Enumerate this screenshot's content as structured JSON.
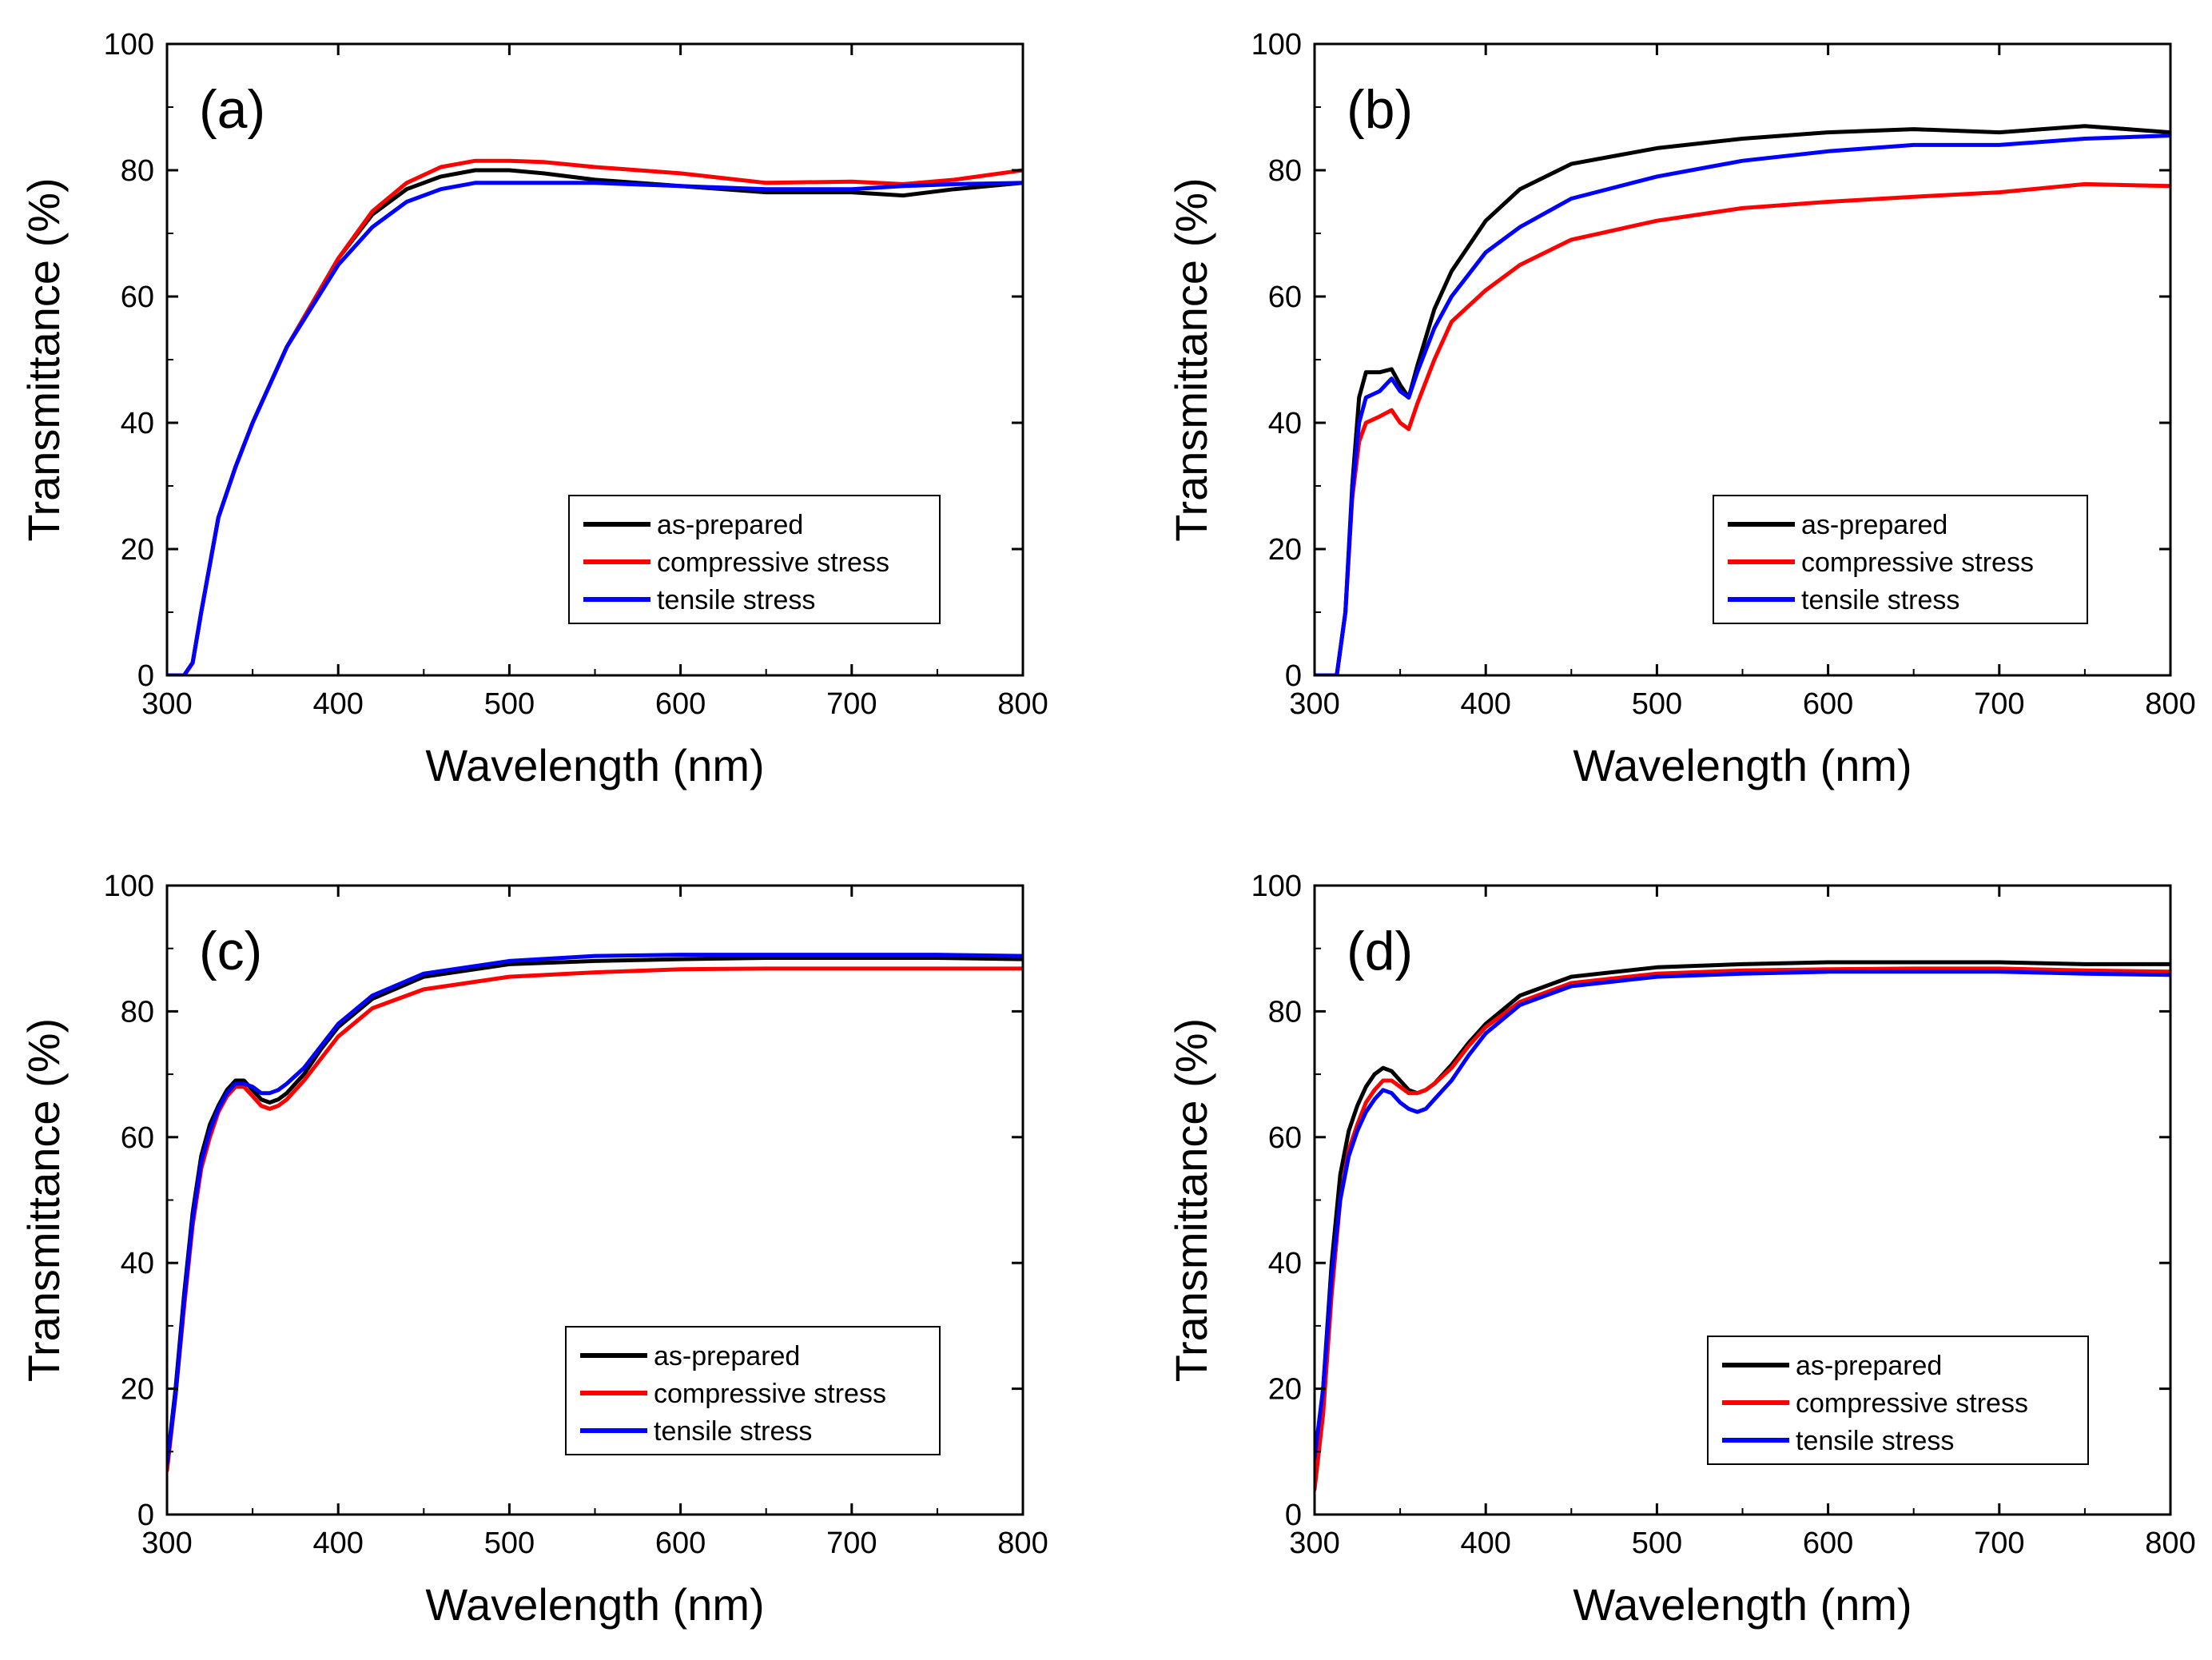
{
  "chart_data": [
    {
      "type": "line",
      "panel_label": "(a)",
      "xlabel": "Wavelength (nm)",
      "ylabel": "Transmittance (%)",
      "xlim": [
        300,
        800
      ],
      "ylim": [
        0,
        100
      ],
      "x_ticks": [
        300,
        400,
        500,
        600,
        700,
        800
      ],
      "y_ticks": [
        0,
        20,
        40,
        60,
        80,
        100
      ],
      "legend_position": "bottom-right",
      "series": [
        {
          "name": "as-prepared",
          "color": "#000000",
          "x": [
            300,
            310,
            315,
            320,
            330,
            340,
            350,
            370,
            400,
            420,
            440,
            460,
            480,
            500,
            520,
            550,
            600,
            650,
            700,
            730,
            760,
            800
          ],
          "y": [
            0,
            0,
            2,
            10,
            25,
            33,
            40,
            52,
            66,
            73,
            77,
            79,
            80,
            80,
            79.5,
            78.5,
            77.5,
            76.5,
            76.5,
            76,
            77,
            78
          ]
        },
        {
          "name": "compressive stress",
          "color": "#ff0000",
          "x": [
            300,
            310,
            315,
            320,
            330,
            340,
            350,
            370,
            400,
            420,
            440,
            460,
            480,
            500,
            520,
            550,
            600,
            650,
            700,
            730,
            760,
            800
          ],
          "y": [
            0,
            0,
            2,
            10,
            25,
            33,
            40,
            52,
            66,
            73.5,
            78,
            80.5,
            81.5,
            81.5,
            81.3,
            80.5,
            79.5,
            78,
            78.2,
            77.8,
            78.5,
            80
          ]
        },
        {
          "name": "tensile stress",
          "color": "#0000ff",
          "x": [
            300,
            310,
            315,
            320,
            330,
            340,
            350,
            370,
            400,
            420,
            440,
            460,
            480,
            500,
            520,
            550,
            600,
            650,
            700,
            730,
            760,
            800
          ],
          "y": [
            0,
            0,
            2,
            10,
            25,
            33,
            40,
            52,
            65,
            71,
            75,
            77,
            78,
            78,
            78,
            78,
            77.5,
            77,
            77,
            77.5,
            77.8,
            78
          ]
        }
      ],
      "legend_labels": [
        "as-prepared",
        "compressive stress",
        "tensile stress"
      ]
    },
    {
      "type": "line",
      "panel_label": "(b)",
      "xlabel": "Wavelength (nm)",
      "ylabel": "Transmittance (%)",
      "xlim": [
        300,
        800
      ],
      "ylim": [
        0,
        100
      ],
      "x_ticks": [
        300,
        400,
        500,
        600,
        700,
        800
      ],
      "y_ticks": [
        0,
        20,
        40,
        60,
        80,
        100
      ],
      "legend_position": "bottom-right",
      "series": [
        {
          "name": "as-prepared",
          "color": "#000000",
          "x": [
            300,
            313,
            318,
            322,
            326,
            330,
            338,
            345,
            350,
            355,
            360,
            370,
            380,
            400,
            420,
            450,
            500,
            550,
            600,
            650,
            700,
            750,
            800
          ],
          "y": [
            0,
            0,
            10,
            30,
            44,
            48,
            48,
            48.5,
            46,
            44,
            49,
            58,
            64,
            72,
            77,
            81,
            83.5,
            85,
            86,
            86.5,
            86,
            87,
            86
          ]
        },
        {
          "name": "compressive stress",
          "color": "#ff0000",
          "x": [
            300,
            313,
            318,
            322,
            326,
            330,
            338,
            345,
            350,
            355,
            360,
            370,
            380,
            400,
            420,
            450,
            500,
            550,
            600,
            650,
            700,
            750,
            800
          ],
          "y": [
            0,
            0,
            10,
            28,
            37,
            40,
            41,
            42,
            40,
            39,
            43,
            50,
            56,
            61,
            65,
            69,
            72,
            74,
            75,
            75.8,
            76.5,
            77.8,
            77.5
          ]
        },
        {
          "name": "tensile stress",
          "color": "#0000ff",
          "x": [
            300,
            313,
            318,
            322,
            326,
            330,
            338,
            345,
            350,
            355,
            360,
            370,
            380,
            400,
            420,
            450,
            500,
            550,
            600,
            650,
            700,
            750,
            800
          ],
          "y": [
            0,
            0,
            10,
            29,
            40,
            44,
            45,
            47,
            45,
            44,
            48,
            55,
            60,
            67,
            71,
            75.5,
            79,
            81.5,
            83,
            84,
            84,
            85,
            85.5
          ]
        }
      ],
      "legend_labels": [
        "as-prepared",
        "compressive stress",
        "tensile stress"
      ]
    },
    {
      "type": "line",
      "panel_label": "(c)",
      "xlabel": "Wavelength (nm)",
      "ylabel": "Transmittance (%)",
      "xlim": [
        300,
        800
      ],
      "ylim": [
        0,
        100
      ],
      "x_ticks": [
        300,
        400,
        500,
        600,
        700,
        800
      ],
      "y_ticks": [
        0,
        20,
        40,
        60,
        80,
        100
      ],
      "legend_position": "bottom-right",
      "series": [
        {
          "name": "as-prepared",
          "color": "#000000",
          "x": [
            300,
            305,
            310,
            315,
            320,
            325,
            330,
            335,
            340,
            345,
            350,
            355,
            360,
            365,
            370,
            380,
            390,
            400,
            420,
            450,
            500,
            550,
            600,
            650,
            700,
            750,
            800
          ],
          "y": [
            8,
            20,
            35,
            48,
            57,
            62,
            65,
            67.5,
            69,
            69,
            67.5,
            66,
            65.5,
            66,
            67,
            70,
            74,
            77.5,
            82,
            85.5,
            87.5,
            88,
            88.3,
            88.5,
            88.5,
            88.5,
            88.3
          ]
        },
        {
          "name": "compressive stress",
          "color": "#ff0000",
          "x": [
            300,
            305,
            310,
            315,
            320,
            325,
            330,
            335,
            340,
            345,
            350,
            355,
            360,
            365,
            370,
            380,
            390,
            400,
            420,
            450,
            500,
            550,
            600,
            650,
            700,
            750,
            800
          ],
          "y": [
            7,
            19,
            33,
            46,
            55,
            60,
            64,
            66.5,
            68,
            68,
            66.5,
            65,
            64.5,
            65,
            66,
            69,
            72.5,
            76,
            80.5,
            83.5,
            85.5,
            86.2,
            86.7,
            86.8,
            86.8,
            86.8,
            86.8
          ]
        },
        {
          "name": "tensile stress",
          "color": "#0000ff",
          "x": [
            300,
            305,
            310,
            315,
            320,
            325,
            330,
            335,
            340,
            345,
            350,
            355,
            360,
            365,
            370,
            380,
            390,
            400,
            420,
            450,
            500,
            550,
            600,
            650,
            700,
            750,
            800
          ],
          "y": [
            8,
            19,
            34,
            47,
            56,
            61,
            64.5,
            67,
            68.5,
            68.5,
            68,
            67,
            67,
            67.5,
            68.5,
            71,
            74.5,
            78,
            82.5,
            86,
            88,
            88.8,
            89,
            89,
            89,
            89,
            88.8
          ]
        }
      ],
      "legend_labels": [
        "as-prepared",
        "compressive stress",
        "tensile stress"
      ]
    },
    {
      "type": "line",
      "panel_label": "(d)",
      "xlabel": "Wavelength (nm)",
      "ylabel": "Transmittance (%)",
      "xlim": [
        300,
        800
      ],
      "ylim": [
        0,
        100
      ],
      "x_ticks": [
        300,
        400,
        500,
        600,
        700,
        800
      ],
      "y_ticks": [
        0,
        20,
        40,
        60,
        80,
        100
      ],
      "legend_position": "bottom-right",
      "series": [
        {
          "name": "as-prepared",
          "color": "#000000",
          "x": [
            300,
            305,
            310,
            315,
            320,
            325,
            330,
            335,
            340,
            345,
            350,
            355,
            360,
            365,
            370,
            380,
            390,
            400,
            420,
            450,
            500,
            550,
            600,
            650,
            700,
            750,
            800
          ],
          "y": [
            6,
            20,
            40,
            54,
            61,
            65,
            68,
            70,
            71,
            70.5,
            69,
            67.5,
            67,
            67.5,
            68.5,
            71.5,
            75,
            78,
            82.5,
            85.5,
            87,
            87.5,
            87.8,
            87.8,
            87.8,
            87.5,
            87.5
          ]
        },
        {
          "name": "compressive stress",
          "color": "#ff0000",
          "x": [
            300,
            305,
            310,
            315,
            320,
            325,
            330,
            335,
            340,
            345,
            350,
            355,
            360,
            365,
            370,
            380,
            390,
            400,
            420,
            450,
            500,
            550,
            600,
            650,
            700,
            750,
            800
          ],
          "y": [
            4,
            16,
            35,
            50,
            58,
            62,
            65.5,
            67.5,
            69,
            69,
            68,
            67,
            67,
            67.5,
            68.5,
            71,
            74.5,
            77.5,
            81.5,
            84.5,
            86,
            86.5,
            86.7,
            86.8,
            86.8,
            86.5,
            86.3
          ]
        },
        {
          "name": "tensile stress",
          "color": "#0000ff",
          "x": [
            300,
            305,
            310,
            315,
            320,
            325,
            330,
            335,
            340,
            345,
            350,
            355,
            360,
            365,
            370,
            380,
            390,
            400,
            420,
            450,
            500,
            550,
            600,
            650,
            700,
            750,
            800
          ],
          "y": [
            9,
            20,
            38,
            50,
            57,
            61,
            64,
            66,
            67.5,
            67,
            65.5,
            64.5,
            64,
            64.5,
            66,
            69,
            73,
            76.5,
            81,
            84,
            85.5,
            86,
            86.3,
            86.3,
            86.3,
            86,
            85.8
          ]
        }
      ],
      "legend_labels": [
        "as-prepared",
        "compressive stress",
        "tensile stress"
      ]
    }
  ]
}
